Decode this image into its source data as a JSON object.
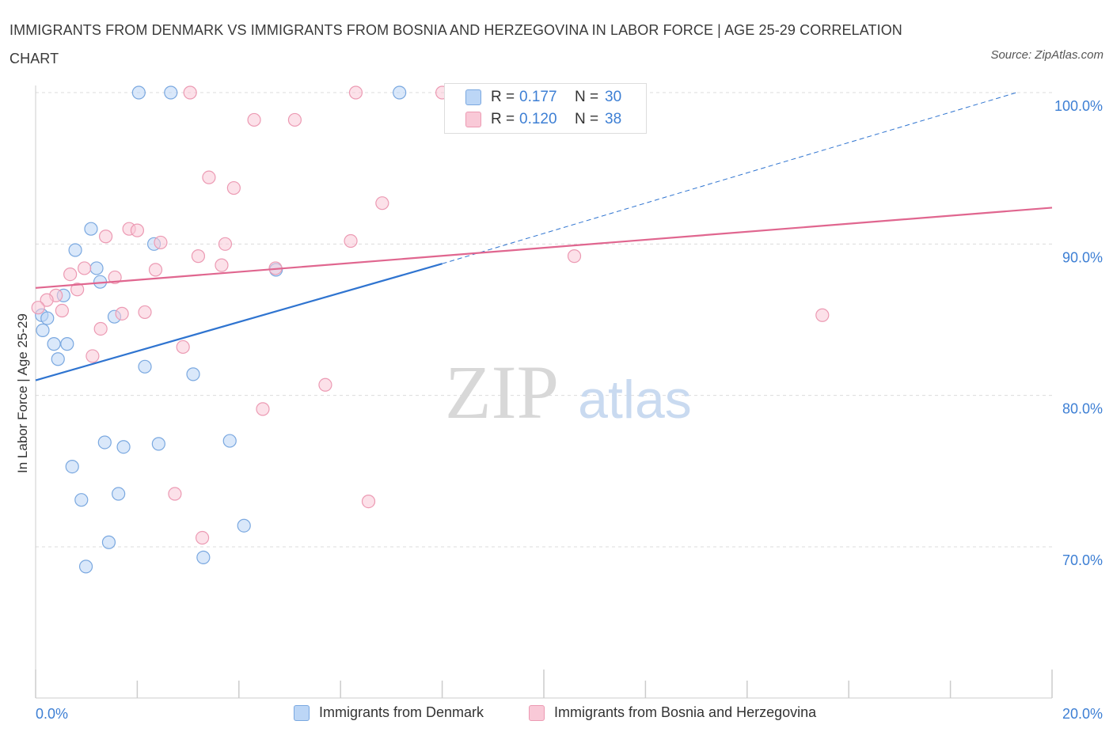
{
  "title": "IMMIGRANTS FROM DENMARK VS IMMIGRANTS FROM BOSNIA AND HERZEGOVINA IN LABOR FORCE | AGE 25-29 CORRELATION CHART",
  "source": "Source: ZipAtlas.com",
  "watermark": {
    "zip": "ZIP",
    "atlas": "atlas"
  },
  "colors": {
    "denmark_fill": "#bcd6f6",
    "denmark_stroke": "#7aa8e0",
    "denmark_line": "#2f74d0",
    "bosnia_fill": "#f9c9d7",
    "bosnia_stroke": "#ec9ab3",
    "bosnia_line": "#e0668f",
    "axis_value": "#3d7fd4",
    "grid": "#dcdcdc"
  },
  "legend": {
    "r_label": "R =",
    "n_label": "N =",
    "denmark": {
      "r": "0.177",
      "n": "30"
    },
    "bosnia": {
      "r": "0.120",
      "n": "38"
    }
  },
  "chart_data": {
    "type": "scatter",
    "title": "IMMIGRANTS FROM DENMARK VS IMMIGRANTS FROM BOSNIA AND HERZEGOVINA IN LABOR FORCE | AGE 25-29 CORRELATION CHART",
    "xlabel": "",
    "ylabel": "In Labor Force | Age 25-29",
    "xlim": [
      0,
      20
    ],
    "ylim": [
      60,
      100
    ],
    "x_tick_labels": [
      "0.0%",
      "20.0%"
    ],
    "y_ticks": [
      {
        "value": 100,
        "label": "100.0%"
      },
      {
        "value": 90,
        "label": "90.0%"
      },
      {
        "value": 80,
        "label": "80.0%"
      },
      {
        "value": 70,
        "label": "70.0%"
      }
    ],
    "grid": true,
    "legend_position": "top-center",
    "series": [
      {
        "name": "Immigrants from Denmark",
        "r": 0.177,
        "n": 30,
        "trend": {
          "x0": 0.0,
          "y0": 81.0,
          "x1": 8.0,
          "y1": 88.7,
          "dashed_to": {
            "x": 19.3,
            "y": 100.0
          }
        },
        "points": [
          {
            "x": 2.03,
            "y": 100.0
          },
          {
            "x": 2.66,
            "y": 100.0
          },
          {
            "x": 7.16,
            "y": 100.0
          },
          {
            "x": 1.09,
            "y": 91.0
          },
          {
            "x": 0.78,
            "y": 89.6
          },
          {
            "x": 2.33,
            "y": 90.0
          },
          {
            "x": 1.2,
            "y": 88.4
          },
          {
            "x": 4.73,
            "y": 88.3
          },
          {
            "x": 1.27,
            "y": 87.5
          },
          {
            "x": 0.55,
            "y": 86.6
          },
          {
            "x": 0.12,
            "y": 85.3
          },
          {
            "x": 0.23,
            "y": 85.1
          },
          {
            "x": 1.55,
            "y": 85.2
          },
          {
            "x": 0.14,
            "y": 84.3
          },
          {
            "x": 0.36,
            "y": 83.4
          },
          {
            "x": 0.62,
            "y": 83.4
          },
          {
            "x": 0.44,
            "y": 82.4
          },
          {
            "x": 2.15,
            "y": 81.9
          },
          {
            "x": 3.1,
            "y": 81.4
          },
          {
            "x": 1.36,
            "y": 76.9
          },
          {
            "x": 1.73,
            "y": 76.6
          },
          {
            "x": 2.42,
            "y": 76.8
          },
          {
            "x": 3.82,
            "y": 77.0
          },
          {
            "x": 0.72,
            "y": 75.3
          },
          {
            "x": 0.9,
            "y": 73.1
          },
          {
            "x": 1.63,
            "y": 73.5
          },
          {
            "x": 4.1,
            "y": 71.4
          },
          {
            "x": 1.44,
            "y": 70.3
          },
          {
            "x": 0.99,
            "y": 68.7
          },
          {
            "x": 3.3,
            "y": 69.3
          }
        ]
      },
      {
        "name": "Immigrants from Bosnia and Herzegovina",
        "r": 0.12,
        "n": 38,
        "trend": {
          "x0": 0.0,
          "y0": 87.1,
          "x1": 20.0,
          "y1": 92.4
        },
        "points": [
          {
            "x": 3.04,
            "y": 100.0
          },
          {
            "x": 6.3,
            "y": 100.0
          },
          {
            "x": 8.0,
            "y": 100.0
          },
          {
            "x": 4.3,
            "y": 98.2
          },
          {
            "x": 5.1,
            "y": 98.2
          },
          {
            "x": 3.41,
            "y": 94.4
          },
          {
            "x": 3.9,
            "y": 93.7
          },
          {
            "x": 6.82,
            "y": 92.7
          },
          {
            "x": 1.84,
            "y": 91.0
          },
          {
            "x": 2.0,
            "y": 90.9
          },
          {
            "x": 1.38,
            "y": 90.5
          },
          {
            "x": 2.46,
            "y": 90.1
          },
          {
            "x": 3.73,
            "y": 90.0
          },
          {
            "x": 6.2,
            "y": 90.2
          },
          {
            "x": 3.2,
            "y": 89.2
          },
          {
            "x": 10.6,
            "y": 89.2
          },
          {
            "x": 3.66,
            "y": 88.6
          },
          {
            "x": 2.36,
            "y": 88.3
          },
          {
            "x": 0.96,
            "y": 88.4
          },
          {
            "x": 4.72,
            "y": 88.4
          },
          {
            "x": 0.68,
            "y": 88.0
          },
          {
            "x": 1.56,
            "y": 87.8
          },
          {
            "x": 0.82,
            "y": 87.0
          },
          {
            "x": 0.4,
            "y": 86.6
          },
          {
            "x": 0.22,
            "y": 86.3
          },
          {
            "x": 0.05,
            "y": 85.8
          },
          {
            "x": 0.52,
            "y": 85.6
          },
          {
            "x": 1.7,
            "y": 85.4
          },
          {
            "x": 2.15,
            "y": 85.5
          },
          {
            "x": 15.48,
            "y": 85.3
          },
          {
            "x": 1.28,
            "y": 84.4
          },
          {
            "x": 2.9,
            "y": 83.2
          },
          {
            "x": 1.12,
            "y": 82.6
          },
          {
            "x": 5.7,
            "y": 80.7
          },
          {
            "x": 4.47,
            "y": 79.1
          },
          {
            "x": 2.74,
            "y": 73.5
          },
          {
            "x": 6.55,
            "y": 73.0
          },
          {
            "x": 3.28,
            "y": 70.6
          }
        ]
      }
    ]
  }
}
